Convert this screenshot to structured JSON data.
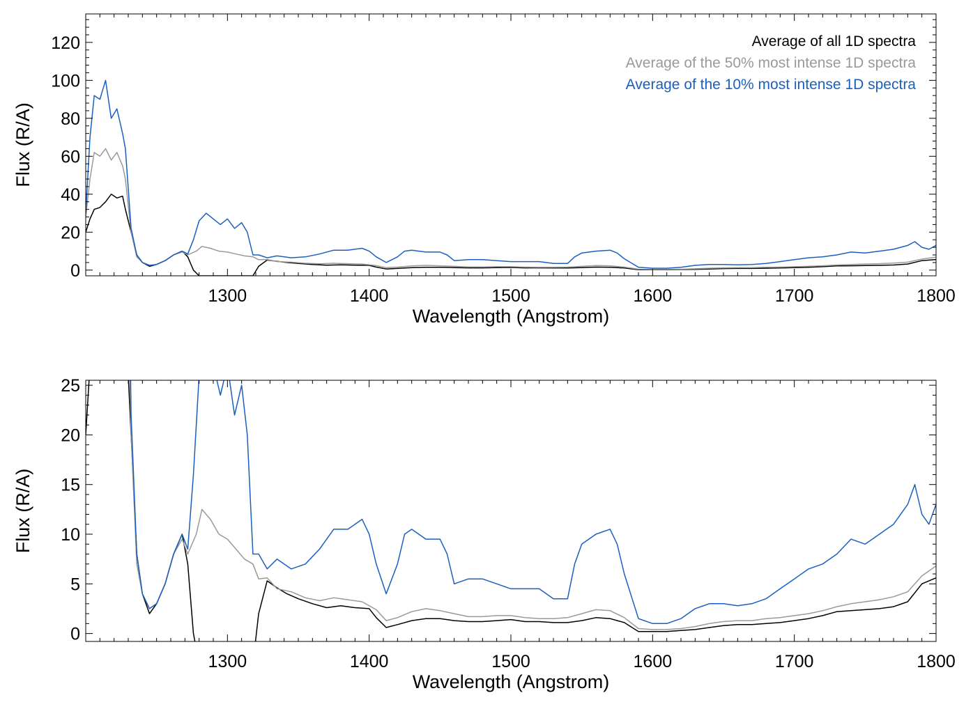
{
  "chart_data": [
    {
      "type": "line",
      "xlabel": "Wavelength (Angstrom)",
      "ylabel": "Flux (R/A)",
      "xlim": [
        1200,
        1800
      ],
      "ylim": [
        -3,
        135
      ],
      "x_ticks": [
        1300,
        1400,
        1500,
        1600,
        1700,
        1800
      ],
      "y_ticks": [
        0,
        20,
        40,
        60,
        80,
        100,
        120
      ],
      "legend_position": "top-right",
      "series": [
        {
          "name": "Average of all 1D spectra",
          "color": "#000000",
          "points": [
            [
              1200,
              20
            ],
            [
              1203,
              27
            ],
            [
              1206,
              32
            ],
            [
              1210,
              33
            ],
            [
              1214,
              36
            ],
            [
              1218,
              40
            ],
            [
              1222,
              38
            ],
            [
              1226,
              39
            ],
            [
              1228,
              32
            ],
            [
              1232,
              20
            ],
            [
              1236,
              8
            ],
            [
              1240,
              4
            ],
            [
              1245,
              2
            ],
            [
              1250,
              3
            ],
            [
              1256,
              5
            ],
            [
              1262,
              8
            ],
            [
              1268,
              10
            ],
            [
              1272,
              7
            ],
            [
              1276,
              0
            ],
            [
              1280,
              -3
            ],
            [
              1300,
              -3
            ],
            [
              1318,
              -3
            ],
            [
              1322,
              2
            ],
            [
              1328,
              5.3
            ],
            [
              1335,
              4.6
            ],
            [
              1342,
              4
            ],
            [
              1350,
              3.5
            ],
            [
              1360,
              3
            ],
            [
              1370,
              2.6
            ],
            [
              1380,
              2.8
            ],
            [
              1390,
              2.6
            ],
            [
              1400,
              2.5
            ],
            [
              1405,
              1.6
            ],
            [
              1412,
              0.6
            ],
            [
              1420,
              0.9
            ],
            [
              1430,
              1.3
            ],
            [
              1440,
              1.5
            ],
            [
              1450,
              1.5
            ],
            [
              1460,
              1.3
            ],
            [
              1470,
              1.2
            ],
            [
              1480,
              1.2
            ],
            [
              1490,
              1.3
            ],
            [
              1500,
              1.4
            ],
            [
              1510,
              1.2
            ],
            [
              1520,
              1.2
            ],
            [
              1530,
              1.1
            ],
            [
              1540,
              1.1
            ],
            [
              1550,
              1.3
            ],
            [
              1560,
              1.6
            ],
            [
              1570,
              1.5
            ],
            [
              1580,
              1.1
            ],
            [
              1590,
              0.2
            ],
            [
              1600,
              0.2
            ],
            [
              1610,
              0.2
            ],
            [
              1620,
              0.3
            ],
            [
              1630,
              0.4
            ],
            [
              1640,
              0.6
            ],
            [
              1650,
              0.8
            ],
            [
              1660,
              0.9
            ],
            [
              1670,
              0.9
            ],
            [
              1680,
              1
            ],
            [
              1690,
              1.1
            ],
            [
              1700,
              1.3
            ],
            [
              1710,
              1.5
            ],
            [
              1720,
              1.8
            ],
            [
              1730,
              2.2
            ],
            [
              1740,
              2.3
            ],
            [
              1750,
              2.4
            ],
            [
              1760,
              2.5
            ],
            [
              1770,
              2.7
            ],
            [
              1780,
              3.2
            ],
            [
              1790,
              5
            ],
            [
              1800,
              5.6
            ]
          ]
        },
        {
          "name": "Average of the 50% most intense 1D spectra",
          "color": "#999999",
          "points": [
            [
              1200,
              28
            ],
            [
              1203,
              48
            ],
            [
              1206,
              62
            ],
            [
              1210,
              60
            ],
            [
              1214,
              64
            ],
            [
              1218,
              58
            ],
            [
              1222,
              62
            ],
            [
              1226,
              55
            ],
            [
              1228,
              48
            ],
            [
              1232,
              20
            ],
            [
              1236,
              7
            ],
            [
              1240,
              4
            ],
            [
              1245,
              2.5
            ],
            [
              1250,
              3
            ],
            [
              1256,
              5
            ],
            [
              1262,
              8
            ],
            [
              1268,
              9.5
            ],
            [
              1272,
              8
            ],
            [
              1278,
              10
            ],
            [
              1282,
              12.5
            ],
            [
              1288,
              11.5
            ],
            [
              1294,
              10
            ],
            [
              1300,
              9.5
            ],
            [
              1306,
              8.5
            ],
            [
              1312,
              7.5
            ],
            [
              1318,
              7
            ],
            [
              1322,
              5.5
            ],
            [
              1328,
              5.6
            ],
            [
              1335,
              4.5
            ],
            [
              1345,
              4.2
            ],
            [
              1355,
              3.6
            ],
            [
              1365,
              3.3
            ],
            [
              1375,
              3.6
            ],
            [
              1385,
              3.4
            ],
            [
              1395,
              3.2
            ],
            [
              1405,
              2.4
            ],
            [
              1412,
              1.3
            ],
            [
              1420,
              1.6
            ],
            [
              1430,
              2.2
            ],
            [
              1440,
              2.5
            ],
            [
              1450,
              2.3
            ],
            [
              1460,
              2
            ],
            [
              1470,
              1.7
            ],
            [
              1480,
              1.7
            ],
            [
              1490,
              1.8
            ],
            [
              1500,
              1.8
            ],
            [
              1510,
              1.6
            ],
            [
              1520,
              1.5
            ],
            [
              1530,
              1.5
            ],
            [
              1540,
              1.6
            ],
            [
              1550,
              2
            ],
            [
              1560,
              2.4
            ],
            [
              1570,
              2.3
            ],
            [
              1580,
              1.6
            ],
            [
              1590,
              0.5
            ],
            [
              1600,
              0.4
            ],
            [
              1610,
              0.4
            ],
            [
              1620,
              0.5
            ],
            [
              1630,
              0.7
            ],
            [
              1640,
              1
            ],
            [
              1650,
              1.2
            ],
            [
              1660,
              1.3
            ],
            [
              1670,
              1.3
            ],
            [
              1680,
              1.5
            ],
            [
              1690,
              1.6
            ],
            [
              1700,
              1.8
            ],
            [
              1710,
              2
            ],
            [
              1720,
              2.3
            ],
            [
              1730,
              2.7
            ],
            [
              1740,
              3
            ],
            [
              1750,
              3.2
            ],
            [
              1760,
              3.4
            ],
            [
              1770,
              3.7
            ],
            [
              1780,
              4.2
            ],
            [
              1790,
              5.8
            ],
            [
              1800,
              6.8
            ]
          ]
        },
        {
          "name": "Average of the 10% most intense 1D spectra",
          "color": "#1a5fc0",
          "points": [
            [
              1200,
              30
            ],
            [
              1203,
              70
            ],
            [
              1206,
              92
            ],
            [
              1210,
              90
            ],
            [
              1214,
              100
            ],
            [
              1218,
              80
            ],
            [
              1222,
              85
            ],
            [
              1226,
              72
            ],
            [
              1228,
              64
            ],
            [
              1232,
              22
            ],
            [
              1236,
              8
            ],
            [
              1240,
              4
            ],
            [
              1245,
              2.5
            ],
            [
              1250,
              3
            ],
            [
              1256,
              5
            ],
            [
              1262,
              8
            ],
            [
              1268,
              10
            ],
            [
              1272,
              8.5
            ],
            [
              1276,
              16
            ],
            [
              1280,
              26
            ],
            [
              1285,
              30
            ],
            [
              1290,
              27
            ],
            [
              1295,
              24
            ],
            [
              1300,
              27
            ],
            [
              1305,
              22
            ],
            [
              1310,
              25
            ],
            [
              1314,
              20
            ],
            [
              1318,
              8
            ],
            [
              1322,
              8
            ],
            [
              1328,
              6.5
            ],
            [
              1335,
              7.5
            ],
            [
              1345,
              6.5
            ],
            [
              1355,
              7
            ],
            [
              1365,
              8.5
            ],
            [
              1375,
              10.5
            ],
            [
              1385,
              10.5
            ],
            [
              1395,
              11.5
            ],
            [
              1400,
              10
            ],
            [
              1405,
              7
            ],
            [
              1412,
              4
            ],
            [
              1420,
              7
            ],
            [
              1425,
              10
            ],
            [
              1430,
              10.5
            ],
            [
              1440,
              9.5
            ],
            [
              1450,
              9.5
            ],
            [
              1455,
              8
            ],
            [
              1460,
              5
            ],
            [
              1470,
              5.5
            ],
            [
              1480,
              5.5
            ],
            [
              1490,
              5
            ],
            [
              1500,
              4.5
            ],
            [
              1510,
              4.5
            ],
            [
              1520,
              4.5
            ],
            [
              1530,
              3.5
            ],
            [
              1540,
              3.5
            ],
            [
              1545,
              7
            ],
            [
              1550,
              9
            ],
            [
              1560,
              10
            ],
            [
              1570,
              10.5
            ],
            [
              1575,
              9
            ],
            [
              1580,
              6
            ],
            [
              1590,
              1.5
            ],
            [
              1600,
              1
            ],
            [
              1610,
              1
            ],
            [
              1620,
              1.5
            ],
            [
              1630,
              2.5
            ],
            [
              1640,
              3
            ],
            [
              1650,
              3
            ],
            [
              1660,
              2.8
            ],
            [
              1670,
              3
            ],
            [
              1680,
              3.5
            ],
            [
              1690,
              4.5
            ],
            [
              1700,
              5.5
            ],
            [
              1710,
              6.5
            ],
            [
              1720,
              7
            ],
            [
              1730,
              8
            ],
            [
              1740,
              9.5
            ],
            [
              1750,
              9
            ],
            [
              1760,
              10
            ],
            [
              1770,
              11
            ],
            [
              1780,
              13
            ],
            [
              1785,
              15
            ],
            [
              1790,
              12
            ],
            [
              1795,
              11
            ],
            [
              1800,
              13
            ]
          ]
        }
      ]
    },
    {
      "type": "line",
      "xlabel": "Wavelength (Angstrom)",
      "ylabel": "Flux (R/A)",
      "xlim": [
        1200,
        1800
      ],
      "ylim": [
        -0.8,
        25.5
      ],
      "x_ticks": [
        1300,
        1400,
        1500,
        1600,
        1700,
        1800
      ],
      "y_ticks": [
        0,
        5,
        10,
        15,
        20,
        25
      ],
      "series_ref": "same series as first panel, magnified y-range"
    }
  ]
}
